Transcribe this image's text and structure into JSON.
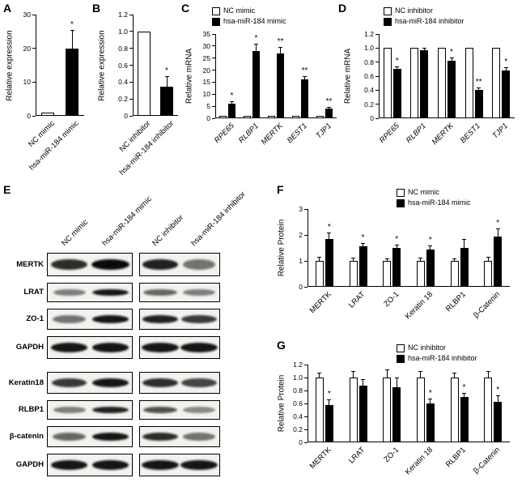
{
  "panels": {
    "A": "A",
    "B": "B",
    "C": "C",
    "D": "D",
    "E": "E",
    "F": "F",
    "G": "G"
  },
  "chart_data": [
    {
      "id": "A",
      "type": "bar",
      "title": "",
      "ylabel": "Relative expression",
      "xlabel": "",
      "ylim": [
        0,
        30
      ],
      "yticks": [
        "0",
        "10",
        "20",
        "30"
      ],
      "categories": [
        "NC mimic",
        "hsa-miR-184 mimic"
      ],
      "series": [
        {
          "name": "",
          "fills": [
            "#ffffff",
            "#000000"
          ],
          "values": [
            1,
            20
          ],
          "errors": [
            0,
            5.5
          ],
          "sig": [
            "",
            "*"
          ]
        }
      ]
    },
    {
      "id": "B",
      "type": "bar",
      "title": "",
      "ylabel": "Relative expression",
      "xlabel": "",
      "ylim": [
        0,
        1.2
      ],
      "yticks": [
        "0",
        "0.2",
        "0.4",
        "0.6",
        "0.8",
        "1.0",
        "1.2"
      ],
      "categories": [
        "NC inhibitor",
        "hsa-miR-184 inhibitor"
      ],
      "series": [
        {
          "name": "",
          "fills": [
            "#ffffff",
            "#000000"
          ],
          "values": [
            1.0,
            0.35
          ],
          "errors": [
            0,
            0.12
          ],
          "sig": [
            "",
            "*"
          ]
        }
      ]
    },
    {
      "id": "C",
      "type": "bar",
      "title": "",
      "ylabel": "Relative mRNA",
      "xlabel": "",
      "ylim": [
        0,
        35
      ],
      "yticks": [
        "0",
        "5",
        "10",
        "15",
        "20",
        "25",
        "30",
        "35"
      ],
      "categories": [
        "RPE65",
        "RLBP1",
        "MERTK",
        "BEST1",
        "TJP1"
      ],
      "italic_categories": true,
      "legend_labels": [
        "NC mimic",
        "hsa-miR-184 mimic"
      ],
      "legend_fills": [
        "#ffffff",
        "#000000"
      ],
      "series": [
        {
          "name": "NC mimic",
          "fill": "#ffffff",
          "values": [
            1,
            1,
            1,
            1,
            1
          ],
          "errors": [
            0,
            0,
            0,
            0,
            0
          ],
          "sig": [
            "",
            "",
            "",
            "",
            ""
          ]
        },
        {
          "name": "hsa-miR-184 mimic",
          "fill": "#000000",
          "values": [
            6,
            28,
            27,
            16,
            4
          ],
          "errors": [
            1,
            3,
            2.5,
            1.5,
            0.8
          ],
          "sig": [
            "*",
            "*",
            "**",
            "**",
            "**"
          ]
        }
      ]
    },
    {
      "id": "D",
      "type": "bar",
      "title": "",
      "ylabel": "Relative mRNA",
      "xlabel": "",
      "ylim": [
        0,
        1.2
      ],
      "yticks": [
        "0",
        "0.2",
        "0.4",
        "0.6",
        "0.8",
        "1.0",
        "1.2"
      ],
      "categories": [
        "RPE65",
        "RLBP1",
        "MERTK",
        "BEST1",
        "TJP1"
      ],
      "italic_categories": true,
      "legend_labels": [
        "NC inhibitor",
        "hsa-miR-184 inhibitor"
      ],
      "legend_fills": [
        "#ffffff",
        "#000000"
      ],
      "series": [
        {
          "name": "NC inhibitor",
          "fill": "#ffffff",
          "values": [
            1,
            1,
            1,
            1,
            1
          ],
          "errors": [
            0,
            0,
            0,
            0,
            0
          ],
          "sig": [
            "",
            "",
            "",
            "",
            ""
          ]
        },
        {
          "name": "hsa-miR-184 inhibitor",
          "fill": "#000000",
          "values": [
            0.7,
            0.97,
            0.82,
            0.4,
            0.68
          ],
          "errors": [
            0.04,
            0.03,
            0.04,
            0.04,
            0.05
          ],
          "sig": [
            "*",
            "",
            "*",
            "**",
            "*"
          ]
        }
      ]
    },
    {
      "id": "F",
      "type": "bar",
      "title": "",
      "ylabel": "Relative Protein",
      "xlabel": "",
      "ylim": [
        0,
        3
      ],
      "yticks": [
        "0",
        "1",
        "2",
        "3"
      ],
      "categories": [
        "MERTK",
        "LRAT",
        "ZO-1",
        "Keratin 18",
        "RLBP1",
        "β-Catenin"
      ],
      "legend_labels": [
        "NC mimic",
        "hsa-miR-184 mimic"
      ],
      "legend_fills": [
        "#ffffff",
        "#000000"
      ],
      "series": [
        {
          "name": "NC mimic",
          "fill": "#ffffff",
          "values": [
            1,
            1,
            1,
            1,
            1,
            1
          ],
          "errors": [
            0.15,
            0.12,
            0.1,
            0.12,
            0.1,
            0.15
          ],
          "sig": [
            "",
            "",
            "",
            "",
            "",
            ""
          ]
        },
        {
          "name": "hsa-miR-184 mimic",
          "fill": "#000000",
          "values": [
            1.85,
            1.55,
            1.5,
            1.45,
            1.5,
            1.95
          ],
          "errors": [
            0.25,
            0.15,
            0.12,
            0.15,
            0.35,
            0.3
          ],
          "sig": [
            "*",
            "*",
            "*",
            "*",
            "",
            "*"
          ]
        }
      ]
    },
    {
      "id": "G",
      "type": "bar",
      "title": "",
      "ylabel": "Relative Protein",
      "xlabel": "",
      "ylim": [
        0,
        1.2
      ],
      "yticks": [
        "0",
        "0.2",
        "0.4",
        "0.6",
        "0.8",
        "1.0",
        "1.2"
      ],
      "categories": [
        "MERTK",
        "LRAT",
        "ZO-1",
        "Keratin 18",
        "RLBP1",
        "β-Catenin"
      ],
      "legend_labels": [
        "NC inhibitor",
        "hsa-miR-184 inhibitor"
      ],
      "legend_fills": [
        "#ffffff",
        "#000000"
      ],
      "series": [
        {
          "name": "NC inhibitor",
          "fill": "#ffffff",
          "values": [
            1,
            1,
            1,
            1,
            1,
            1
          ],
          "errors": [
            0.08,
            0.1,
            0.12,
            0.1,
            0.08,
            0.1
          ],
          "sig": [
            "",
            "",
            "",
            "",
            "",
            ""
          ]
        },
        {
          "name": "hsa-miR-184 inhibitor",
          "fill": "#000000",
          "values": [
            0.58,
            0.88,
            0.85,
            0.6,
            0.7,
            0.63
          ],
          "errors": [
            0.08,
            0.1,
            0.15,
            0.07,
            0.06,
            0.1
          ],
          "sig": [
            "*",
            "",
            "",
            "*",
            "*",
            "*"
          ]
        }
      ]
    }
  ],
  "blots": {
    "col_labels": [
      "NC mimic",
      "hsa-miR-184 mimic",
      "NC inhibitor",
      "hsa-miR-184 inhibitor"
    ],
    "rows": [
      {
        "label": "MERTK",
        "band_h": 13,
        "left": [
          0.85,
          1
        ],
        "right": [
          0.9,
          0.55
        ]
      },
      {
        "label": "LRAT",
        "band_h": 8,
        "left": [
          0.5,
          0.95
        ],
        "right": [
          0.6,
          0.5
        ]
      },
      {
        "label": "ZO-1",
        "band_h": 10,
        "left": [
          0.55,
          0.95
        ],
        "right": [
          0.9,
          0.8
        ]
      },
      {
        "label": "GAPDH",
        "band_h": 12,
        "left": [
          0.95,
          0.95
        ],
        "right": [
          0.95,
          0.95
        ]
      },
      {
        "label": "Keratin18",
        "band_h": 11,
        "left": [
          0.8,
          0.95
        ],
        "right": [
          0.85,
          0.75
        ]
      },
      {
        "label": "RLBP1",
        "band_h": 8,
        "left": [
          0.5,
          0.9
        ],
        "right": [
          0.7,
          0.45
        ]
      },
      {
        "label": "β-catenin",
        "band_h": 10,
        "left": [
          0.6,
          0.95
        ],
        "right": [
          0.85,
          0.55
        ]
      },
      {
        "label": "GAPDH",
        "band_h": 12,
        "left": [
          0.95,
          0.95
        ],
        "right": [
          0.95,
          0.95
        ]
      }
    ]
  }
}
